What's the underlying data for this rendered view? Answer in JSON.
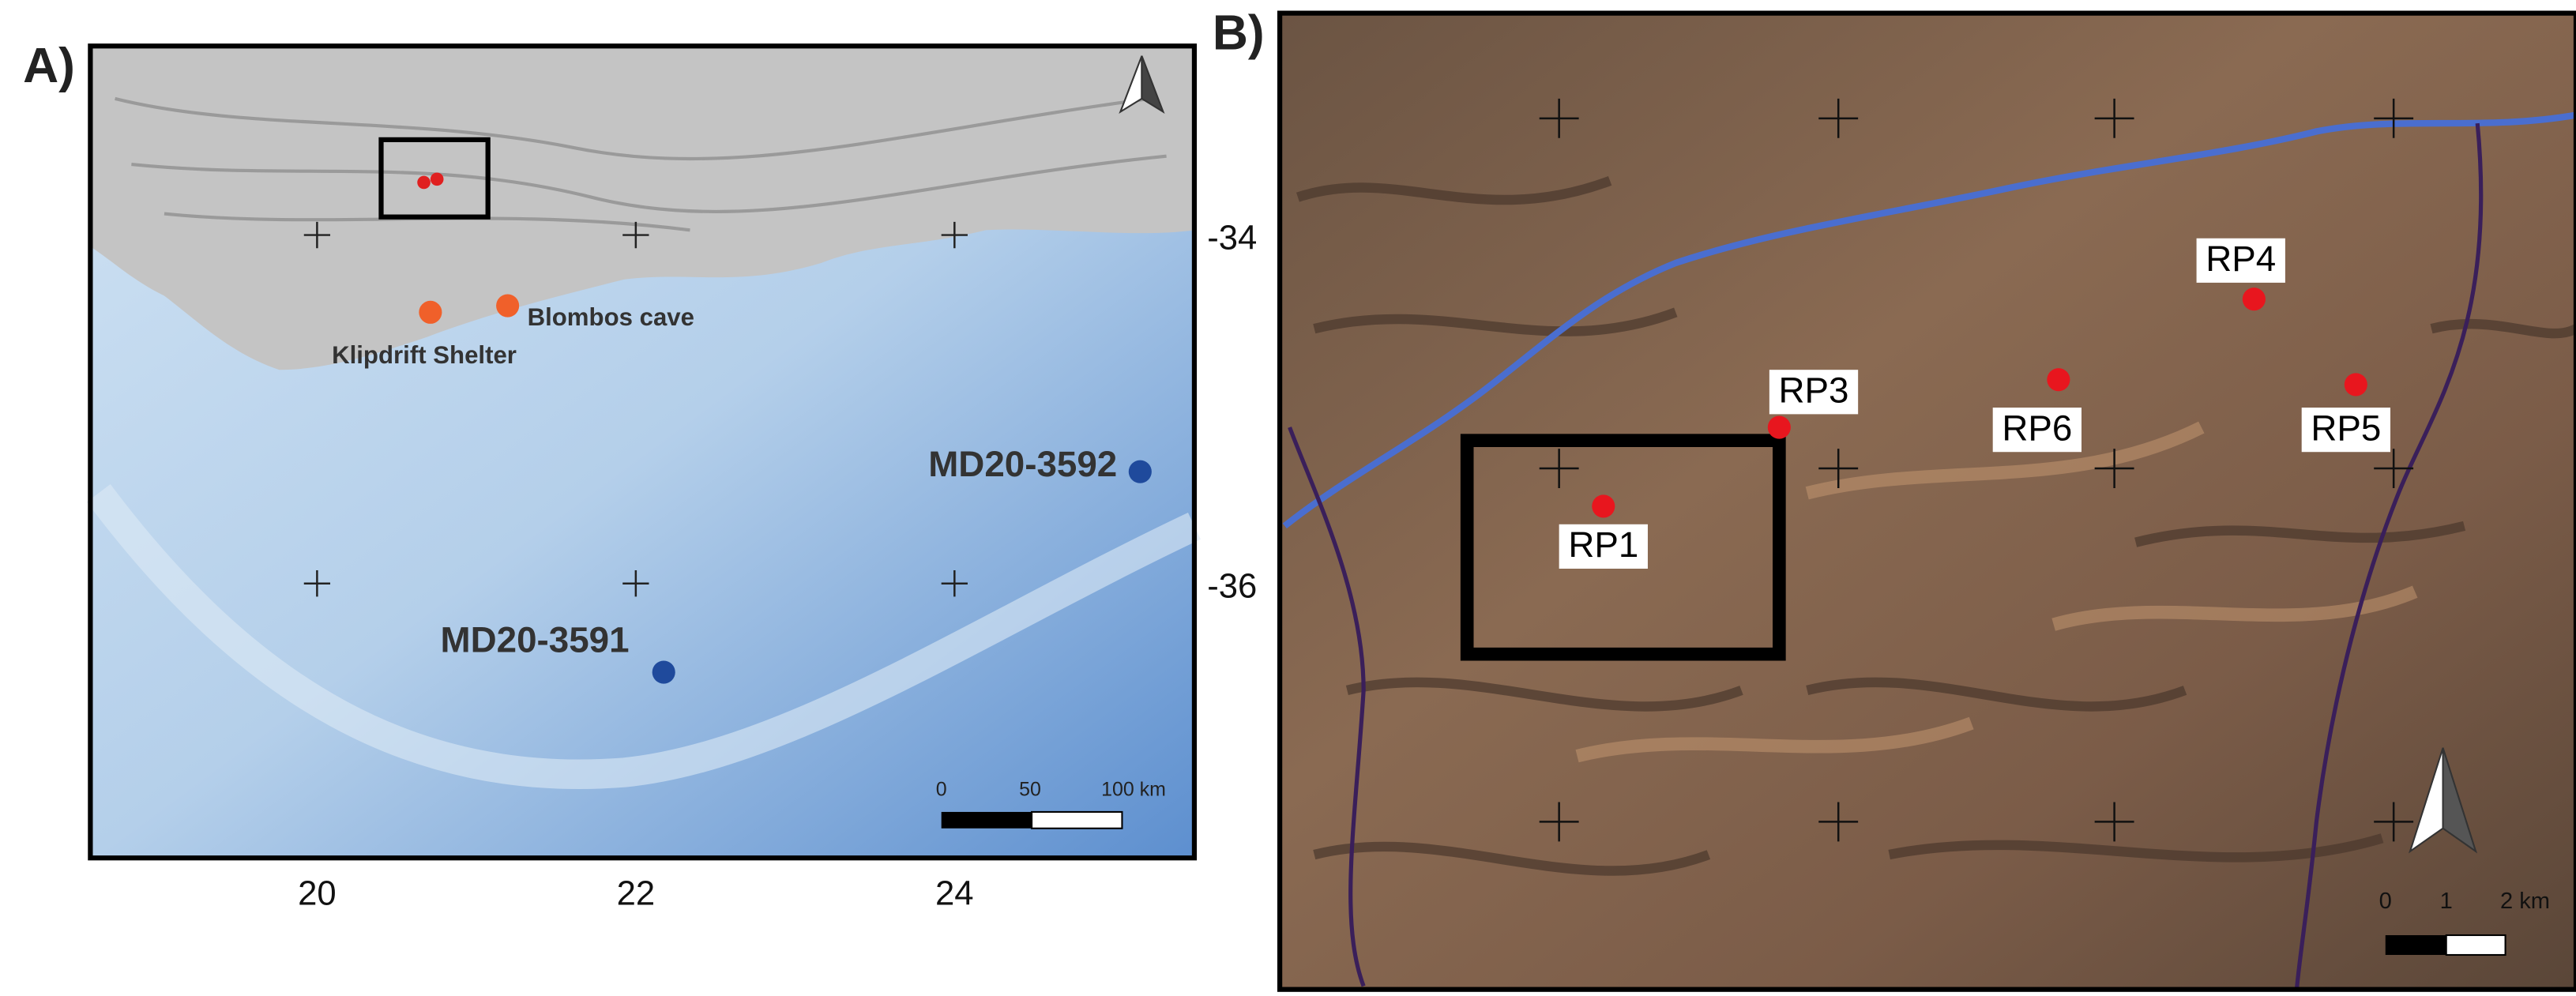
{
  "panel_a": {
    "label": "A)",
    "x_ticks": [
      "20",
      "22",
      "24"
    ],
    "y_ticks": [
      "-34",
      "-36"
    ],
    "sites": [
      {
        "label": "Klipdrift Shelter"
      },
      {
        "label": "Blombos cave"
      }
    ],
    "cores": [
      {
        "label": "MD20-3592"
      },
      {
        "label": "MD20-3591"
      }
    ],
    "scale_bar": [
      "0",
      "50",
      "100 km"
    ]
  },
  "panel_b": {
    "label": "B)",
    "sites": [
      "RP1",
      "RP3",
      "RP6",
      "RP4",
      "RP5"
    ],
    "scale_bar": [
      "0",
      "1",
      "2 km"
    ]
  }
}
